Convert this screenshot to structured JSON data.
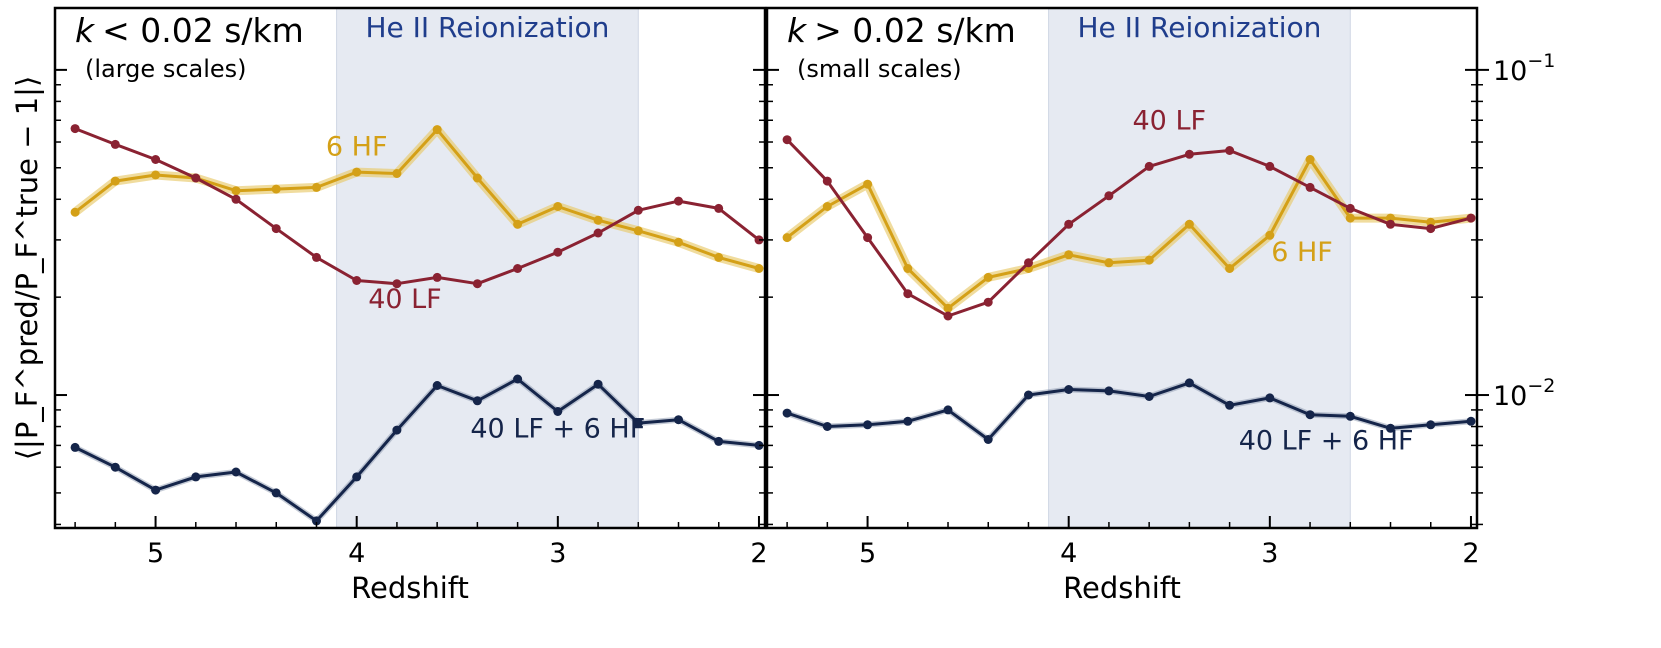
{
  "chart_data": {
    "type": "line",
    "ylabel": "⟨|P_F^pred/P_F^true − 1|⟩",
    "y_scale": "log",
    "ylim": [
      0.0039,
      0.155
    ],
    "y_ticks": [
      {
        "value": 0.1,
        "base": "10",
        "exp": "−1"
      },
      {
        "value": 0.01,
        "base": "10",
        "exp": "−2"
      }
    ],
    "shared_y_axis": true,
    "band": {
      "label": "He II Reionization",
      "x_from": 4.1,
      "x_to": 2.6,
      "color": "#e6eaf2"
    },
    "colors": {
      "hf": "#d4a017",
      "hf_band": "#e8c96a",
      "lf": "#8a2232",
      "combined": "#15254a"
    },
    "panels": [
      {
        "title": "k < 0.02 s/km",
        "title_var": "k",
        "title_rest": "< 0.02 s/km",
        "subtitle": "(large scales)",
        "xlabel": "Redshift",
        "x_inverted": true,
        "xlim": [
          5.5,
          1.97
        ],
        "x_ticks": [
          "5",
          "4",
          "3",
          "2"
        ],
        "series": [
          {
            "name": "6 HF",
            "color_key": "hf",
            "x": [
              5.4,
              5.2,
              5.0,
              4.8,
              4.6,
              4.4,
              4.2,
              4.0,
              3.8,
              3.6,
              3.4,
              3.2,
              3.0,
              2.8,
              2.6,
              2.4,
              2.2,
              2.0
            ],
            "y": [
              0.0365,
              0.0455,
              0.0475,
              0.0465,
              0.0425,
              0.043,
              0.0435,
              0.0485,
              0.048,
              0.0655,
              0.0465,
              0.0335,
              0.038,
              0.0345,
              0.032,
              0.0295,
              0.0265,
              0.0245
            ]
          },
          {
            "name": "40 LF",
            "color_key": "lf",
            "x": [
              5.4,
              5.2,
              5.0,
              4.8,
              4.6,
              4.4,
              4.2,
              4.0,
              3.8,
              3.6,
              3.4,
              3.2,
              3.0,
              2.8,
              2.6,
              2.4,
              2.2,
              2.0
            ],
            "y": [
              0.066,
              0.059,
              0.053,
              0.0465,
              0.04,
              0.0325,
              0.0265,
              0.0225,
              0.022,
              0.023,
              0.022,
              0.0245,
              0.0275,
              0.0315,
              0.037,
              0.0395,
              0.0375,
              0.03
            ]
          },
          {
            "name": "40 LF + 6 HF",
            "color_key": "combined",
            "x": [
              5.4,
              5.2,
              5.0,
              4.8,
              4.6,
              4.4,
              4.2,
              4.0,
              3.8,
              3.6,
              3.4,
              3.2,
              3.0,
              2.8,
              2.6,
              2.4,
              2.2,
              2.0
            ],
            "y": [
              0.0069,
              0.006,
              0.0051,
              0.0056,
              0.0058,
              0.005,
              0.0041,
              0.0056,
              0.0078,
              0.0107,
              0.0096,
              0.0112,
              0.0089,
              0.0108,
              0.0082,
              0.0084,
              0.0072,
              0.007
            ]
          }
        ],
        "labels": [
          {
            "text": "6 HF",
            "series": 0,
            "x": 4.0,
            "y": 0.0545
          },
          {
            "text": "40 LF",
            "series": 1,
            "x": 3.76,
            "y": 0.0185
          },
          {
            "text": "40 LF + 6 HF",
            "series": 2,
            "x": 3.0,
            "y": 0.0074
          }
        ]
      },
      {
        "title": "k > 0.02 s/km",
        "title_var": "k",
        "title_rest": "> 0.02 s/km",
        "subtitle": "(small scales)",
        "xlabel": "Redshift",
        "x_inverted": true,
        "xlim": [
          5.5,
          1.97
        ],
        "x_ticks": [
          "5",
          "4",
          "3",
          "2"
        ],
        "series": [
          {
            "name": "6 HF",
            "color_key": "hf",
            "x": [
              5.4,
              5.2,
              5.0,
              4.8,
              4.6,
              4.4,
              4.2,
              4.0,
              3.8,
              3.6,
              3.4,
              3.2,
              3.0,
              2.8,
              2.6,
              2.4,
              2.2,
              2.0
            ],
            "y": [
              0.0305,
              0.038,
              0.0445,
              0.0245,
              0.0185,
              0.023,
              0.0245,
              0.027,
              0.0255,
              0.026,
              0.0335,
              0.0245,
              0.031,
              0.053,
              0.035,
              0.035,
              0.034,
              0.035
            ]
          },
          {
            "name": "40 LF",
            "color_key": "lf",
            "x": [
              5.4,
              5.2,
              5.0,
              4.8,
              4.6,
              4.4,
              4.2,
              4.0,
              3.8,
              3.6,
              3.4,
              3.2,
              3.0,
              2.8,
              2.6,
              2.4,
              2.2,
              2.0
            ],
            "y": [
              0.061,
              0.0455,
              0.0305,
              0.0205,
              0.0175,
              0.0193,
              0.0255,
              0.0335,
              0.041,
              0.0505,
              0.055,
              0.0565,
              0.0505,
              0.0435,
              0.0375,
              0.0335,
              0.0325,
              0.035
            ]
          },
          {
            "name": "40 LF + 6 HF",
            "color_key": "combined",
            "x": [
              5.4,
              5.2,
              5.0,
              4.8,
              4.6,
              4.4,
              4.2,
              4.0,
              3.8,
              3.6,
              3.4,
              3.2,
              3.0,
              2.8,
              2.6,
              2.4,
              2.2,
              2.0
            ],
            "y": [
              0.0088,
              0.008,
              0.0081,
              0.0083,
              0.009,
              0.0073,
              0.01,
              0.0104,
              0.0103,
              0.0099,
              0.0109,
              0.0093,
              0.0098,
              0.0087,
              0.0086,
              0.0079,
              0.0081,
              0.0083
            ]
          }
        ],
        "labels": [
          {
            "text": "40 LF",
            "series": 1,
            "x": 3.5,
            "y": 0.0655
          },
          {
            "text": "6 HF",
            "series": 0,
            "x": 2.84,
            "y": 0.0258
          },
          {
            "text": "40 LF + 6 HF",
            "series": 2,
            "x": 2.72,
            "y": 0.0068
          }
        ]
      }
    ]
  }
}
